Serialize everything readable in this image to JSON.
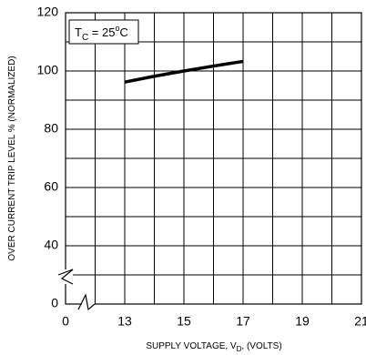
{
  "chart_data": {
    "type": "line",
    "x_label": [
      "SUPPLY VOLTAGE, V",
      "D",
      ", (VOLTS)"
    ],
    "y_label": "OVER CURRENT TRIP LEVEL % (NORMALIZED)",
    "annotation": [
      "T",
      "C",
      " = 25",
      "o",
      "C"
    ],
    "x": [
      13,
      14,
      15,
      16,
      17
    ],
    "series": [
      {
        "color": "#000000",
        "values": [
          96.2,
          98.2,
          100,
          101.7,
          103.3
        ]
      }
    ],
    "xlim": [
      0,
      21
    ],
    "xticks": [
      0,
      13,
      15,
      17,
      19,
      21
    ],
    "ylim": [
      0,
      120
    ],
    "yticks": [
      0,
      40,
      60,
      80,
      100,
      120
    ],
    "grid": true
  }
}
